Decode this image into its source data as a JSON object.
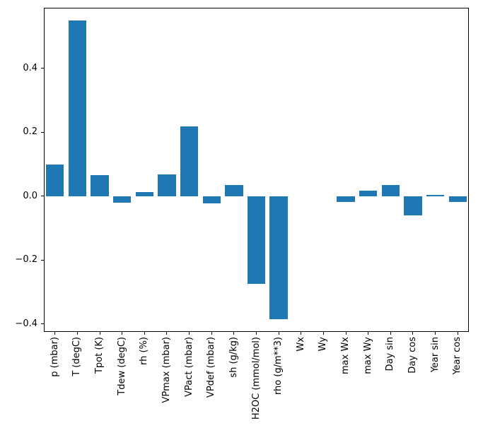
{
  "figure": {
    "background": "#ffffff",
    "axis_color": "#000000"
  },
  "chart_data": {
    "type": "bar",
    "title": "",
    "xlabel": "",
    "ylabel": "",
    "grid": false,
    "legend": null,
    "bar_color": "#1f77b4",
    "ylim": [
      -0.425,
      0.59
    ],
    "yticks": [
      -0.4,
      -0.2,
      0.0,
      0.2,
      0.4
    ],
    "ytick_labels": [
      "−0.4",
      "−0.2",
      "0.0",
      "0.2",
      "0.4"
    ],
    "categories": [
      "p (mbar)",
      "T (degC)",
      "Tpot (K)",
      "Tdew (degC)",
      "rh (%)",
      "VPmax (mbar)",
      "VPact (mbar)",
      "VPdef (mbar)",
      "sh (g/kg)",
      "H2OC (mmol/mol)",
      "rho (g/m**3)",
      "Wx",
      "Wy",
      "max Wx",
      "max Wy",
      "Day sin",
      "Day cos",
      "Year sin",
      "Year cos"
    ],
    "values": [
      0.1,
      0.55,
      0.065,
      -0.02,
      0.012,
      0.068,
      0.218,
      -0.022,
      0.035,
      -0.275,
      -0.385,
      0.0,
      0.0,
      -0.018,
      0.018,
      0.035,
      -0.06,
      0.004,
      -0.018
    ]
  }
}
